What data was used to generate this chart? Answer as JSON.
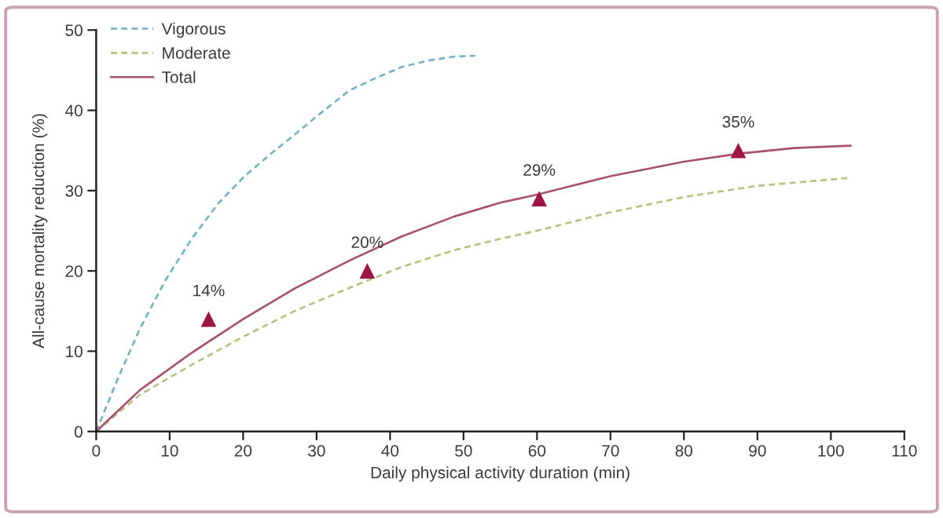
{
  "chart_data": {
    "type": "line",
    "xlabel": "Daily physical activity duration (min)",
    "ylabel": "All-cause mortality reduction (%)",
    "xlim": [
      0,
      110
    ],
    "ylim": [
      0,
      50
    ],
    "xticks": [
      0,
      10,
      20,
      30,
      40,
      50,
      60,
      70,
      80,
      90,
      100,
      110
    ],
    "yticks": [
      0,
      10,
      20,
      30,
      40,
      50
    ],
    "legend": "top left",
    "series": [
      {
        "name": "Vigorous",
        "color": "#6fb3c4",
        "line_style": "dashed",
        "x": [
          0,
          3,
          5.9,
          9.4,
          13,
          16.6,
          20.2,
          23.8,
          27.3,
          30.9,
          34.5,
          38,
          41.6,
          45.2,
          48.8,
          51.6
        ],
        "values": [
          0,
          6.7,
          12.7,
          18.8,
          24,
          28.4,
          31.8,
          34.6,
          37.2,
          39.9,
          42.5,
          44,
          45.4,
          46.2,
          46.7,
          46.8
        ]
      },
      {
        "name": "Moderate",
        "color": "#b0c47c",
        "line_style": "dashed",
        "x": [
          0,
          6,
          13,
          20,
          27,
          34.5,
          41.6,
          48.8,
          55,
          60,
          70,
          80,
          90,
          102.7
        ],
        "values": [
          0,
          4.6,
          8.3,
          11.8,
          15,
          17.9,
          20.5,
          22.6,
          24,
          25,
          27.3,
          29.2,
          30.6,
          31.6
        ]
      },
      {
        "name": "Total",
        "color": "#a8506e",
        "line_style": "solid",
        "x": [
          0,
          6,
          13,
          20,
          27,
          34.5,
          41.6,
          48.8,
          55,
          60,
          70,
          80,
          87.4,
          95,
          102.7
        ],
        "values": [
          0,
          5.2,
          9.8,
          14,
          17.8,
          21.3,
          24.3,
          26.8,
          28.5,
          29.5,
          31.8,
          33.6,
          34.6,
          35.3,
          35.6
        ]
      },
      {
        "type": "scatter",
        "color": "#9e1545",
        "marker": "triangle",
        "x": [
          15.3,
          36.9,
          60.3,
          87.4
        ],
        "values": [
          14,
          20,
          29,
          35
        ],
        "value_labels": [
          "14%",
          "20%",
          "29%",
          "35%"
        ]
      }
    ]
  }
}
